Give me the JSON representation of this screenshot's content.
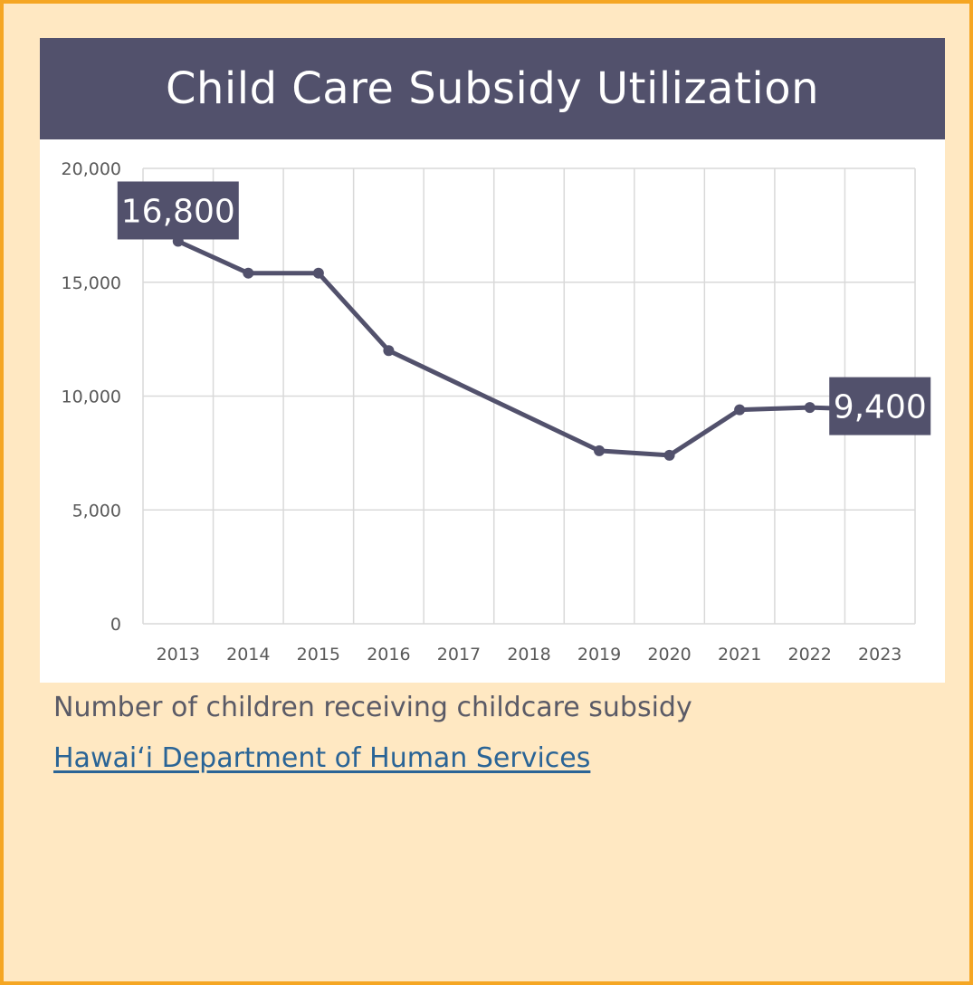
{
  "colors": {
    "background": "#FFE8C2",
    "border": "#F5A623",
    "title_bar": "#52516C",
    "series": "#52516C",
    "grid": "#D9D9D9",
    "tick_text": "#595959",
    "link": "#2A6496"
  },
  "chart_data": {
    "type": "line",
    "title": "Child Care Subsidy Utilization",
    "xlabel": "",
    "ylabel": "",
    "ylim": [
      0,
      20000
    ],
    "yticks": [
      0,
      5000,
      10000,
      15000,
      20000
    ],
    "ytick_labels": [
      "0",
      "5,000",
      "10,000",
      "15,000",
      "20,000"
    ],
    "categories": [
      "2013",
      "2014",
      "2015",
      "2016",
      "2017",
      "2018",
      "2019",
      "2020",
      "2021",
      "2022",
      "2023"
    ],
    "grid": true,
    "series": [
      {
        "name": "Children receiving childcare subsidy",
        "values": [
          16800,
          15400,
          15400,
          12000,
          null,
          null,
          7600,
          7400,
          9400,
          9500,
          9400
        ]
      }
    ],
    "annotations": [
      {
        "category": "2013",
        "text": "16,800"
      },
      {
        "category": "2023",
        "text": "9,400"
      }
    ]
  },
  "caption": "Number of children receiving childcare subsidy",
  "source": {
    "label": "Hawai‘i Department of Human Services"
  }
}
